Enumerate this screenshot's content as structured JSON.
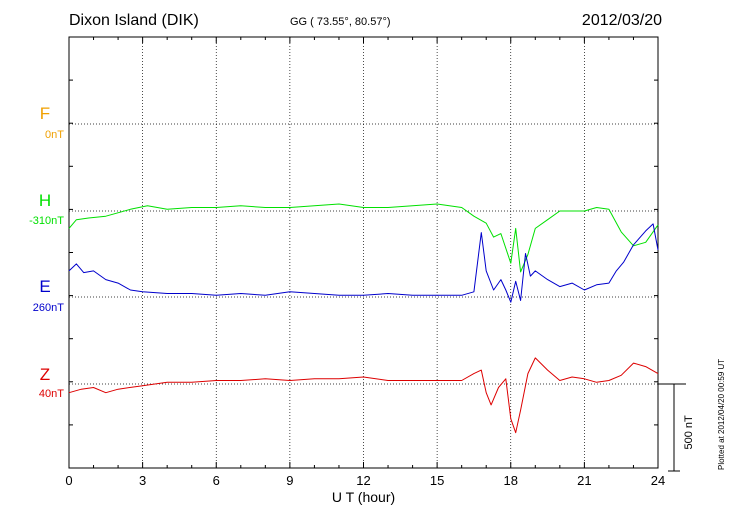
{
  "header": {
    "station": "Dixon Island (DIK)",
    "coords": "GG ( 73.55°,  80.57°)",
    "date": "2012/03/20"
  },
  "footer": {
    "plotted": "Plotted at 2012/04/20 00:59 UT"
  },
  "colors": {
    "F": "#f0a000",
    "H": "#00e000",
    "E": "#0000cc",
    "Z": "#dd0000"
  },
  "chart_data": {
    "type": "line",
    "xlabel": "U T (hour)",
    "xlim": [
      0,
      24
    ],
    "xticks": [
      0,
      3,
      6,
      9,
      12,
      15,
      18,
      21,
      24
    ],
    "x_tick_labels": [
      "0",
      "3",
      "6",
      "9",
      "12",
      "15",
      "18",
      "21",
      "24"
    ],
    "scale_bar_label": "500 nT",
    "scale_bar_nT": 500,
    "grid": true,
    "series": [
      {
        "name": "F",
        "baseline_label": "0nT",
        "color": "#f0a000",
        "x": [],
        "y": []
      },
      {
        "name": "H",
        "baseline_label": "-310nT",
        "color": "#00e000",
        "x": [
          0,
          0.3,
          0.8,
          1.5,
          2.5,
          3.2,
          4,
          5,
          6,
          7,
          8,
          9,
          10,
          11,
          12,
          13,
          14,
          15,
          16,
          16.5,
          17,
          17.3,
          17.6,
          18,
          18.2,
          18.4,
          18.7,
          19,
          19.5,
          20,
          21,
          21.5,
          22,
          22.5,
          23,
          23.5,
          24
        ],
        "y": [
          -100,
          -50,
          -40,
          -30,
          10,
          30,
          10,
          20,
          20,
          30,
          20,
          20,
          30,
          40,
          20,
          20,
          30,
          40,
          20,
          -30,
          -70,
          -150,
          -130,
          -300,
          -100,
          -350,
          -250,
          -100,
          -50,
          0,
          0,
          20,
          10,
          -120,
          -200,
          -180,
          -80
        ]
      },
      {
        "name": "E",
        "baseline_label": "260nT",
        "color": "#0000cc",
        "x": [
          0,
          0.3,
          0.6,
          1,
          1.5,
          2,
          2.5,
          3,
          4,
          5,
          6,
          7,
          8,
          9,
          10,
          11,
          12,
          13,
          14,
          15,
          16,
          16.5,
          16.8,
          17,
          17.3,
          17.6,
          17.8,
          18,
          18.2,
          18.4,
          18.6,
          18.8,
          19,
          19.5,
          20,
          20.5,
          21,
          21.5,
          22,
          22.3,
          22.6,
          23,
          23.5,
          23.8,
          24
        ],
        "y": [
          150,
          190,
          140,
          150,
          100,
          80,
          40,
          30,
          20,
          20,
          10,
          20,
          10,
          30,
          20,
          10,
          10,
          20,
          10,
          10,
          10,
          30,
          370,
          150,
          40,
          100,
          40,
          -30,
          90,
          -20,
          250,
          120,
          150,
          100,
          60,
          80,
          40,
          70,
          80,
          150,
          200,
          300,
          380,
          420,
          270
        ]
      },
      {
        "name": "Z",
        "baseline_label": "40nT",
        "color": "#dd0000",
        "x": [
          0,
          0.5,
          1,
          1.5,
          2,
          3,
          4,
          5,
          6,
          7,
          8,
          9,
          10,
          11,
          12,
          13,
          14,
          15,
          16,
          16.5,
          16.8,
          17,
          17.2,
          17.5,
          17.8,
          18,
          18.2,
          18.4,
          18.7,
          19,
          19.5,
          20,
          20.5,
          21,
          21.5,
          22,
          22.5,
          23,
          23.5,
          24
        ],
        "y": [
          -50,
          -30,
          -20,
          -50,
          -30,
          -10,
          10,
          10,
          20,
          20,
          30,
          20,
          30,
          30,
          40,
          20,
          20,
          20,
          20,
          60,
          80,
          -50,
          -120,
          -20,
          30,
          -200,
          -280,
          -150,
          60,
          150,
          80,
          20,
          40,
          30,
          10,
          20,
          50,
          120,
          100,
          60
        ]
      }
    ]
  }
}
